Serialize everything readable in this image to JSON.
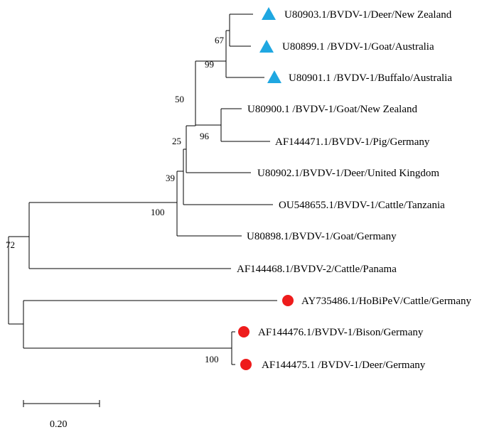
{
  "tree": {
    "taxa": [
      {
        "id": "t1",
        "label": "U80903.1/BVDV-1/Deer/New Zealand",
        "marker": "triangle"
      },
      {
        "id": "t2",
        "label": "U80899.1 /BVDV-1/Goat/Australia",
        "marker": "triangle"
      },
      {
        "id": "t3",
        "label": "U80901.1 /BVDV-1/Buffalo/Australia",
        "marker": "triangle"
      },
      {
        "id": "t4",
        "label": "U80900.1 /BVDV-1/Goat/New Zealand",
        "marker": "none"
      },
      {
        "id": "t5",
        "label": "AF144471.1/BVDV-1/Pig/Germany",
        "marker": "none"
      },
      {
        "id": "t6",
        "label": "U80902.1/BVDV-1/Deer/United Kingdom",
        "marker": "none"
      },
      {
        "id": "t7",
        "label": "OU548655.1/BVDV-1/Cattle/Tanzania",
        "marker": "none"
      },
      {
        "id": "t8",
        "label": "U80898.1/BVDV-1/Goat/Germany",
        "marker": "none"
      },
      {
        "id": "t9",
        "label": "AF144468.1/BVDV-2/Cattle/Panama",
        "marker": "none"
      },
      {
        "id": "t10",
        "label": "AY735486.1/HoBiPeV/Cattle/Germany",
        "marker": "circle"
      },
      {
        "id": "t11",
        "label": "AF144476.1/BVDV-1/Bison/Germany",
        "marker": "circle"
      },
      {
        "id": "t12",
        "label": "AF144475.1 /BVDV-1/Deer/Germany",
        "marker": "circle"
      }
    ],
    "bootstrap": [
      {
        "id": "b67",
        "value": "67"
      },
      {
        "id": "b99",
        "value": "99"
      },
      {
        "id": "b50",
        "value": "50"
      },
      {
        "id": "b96",
        "value": "96"
      },
      {
        "id": "b25",
        "value": "25"
      },
      {
        "id": "b39",
        "value": "39"
      },
      {
        "id": "b100a",
        "value": "100"
      },
      {
        "id": "b72",
        "value": "72"
      },
      {
        "id": "b100b",
        "value": "100"
      }
    ],
    "scale_bar": {
      "label": "0.20"
    },
    "colors": {
      "triangle": "#1fa7e1",
      "circle": "#ee1c1c",
      "line": "#000000"
    }
  }
}
